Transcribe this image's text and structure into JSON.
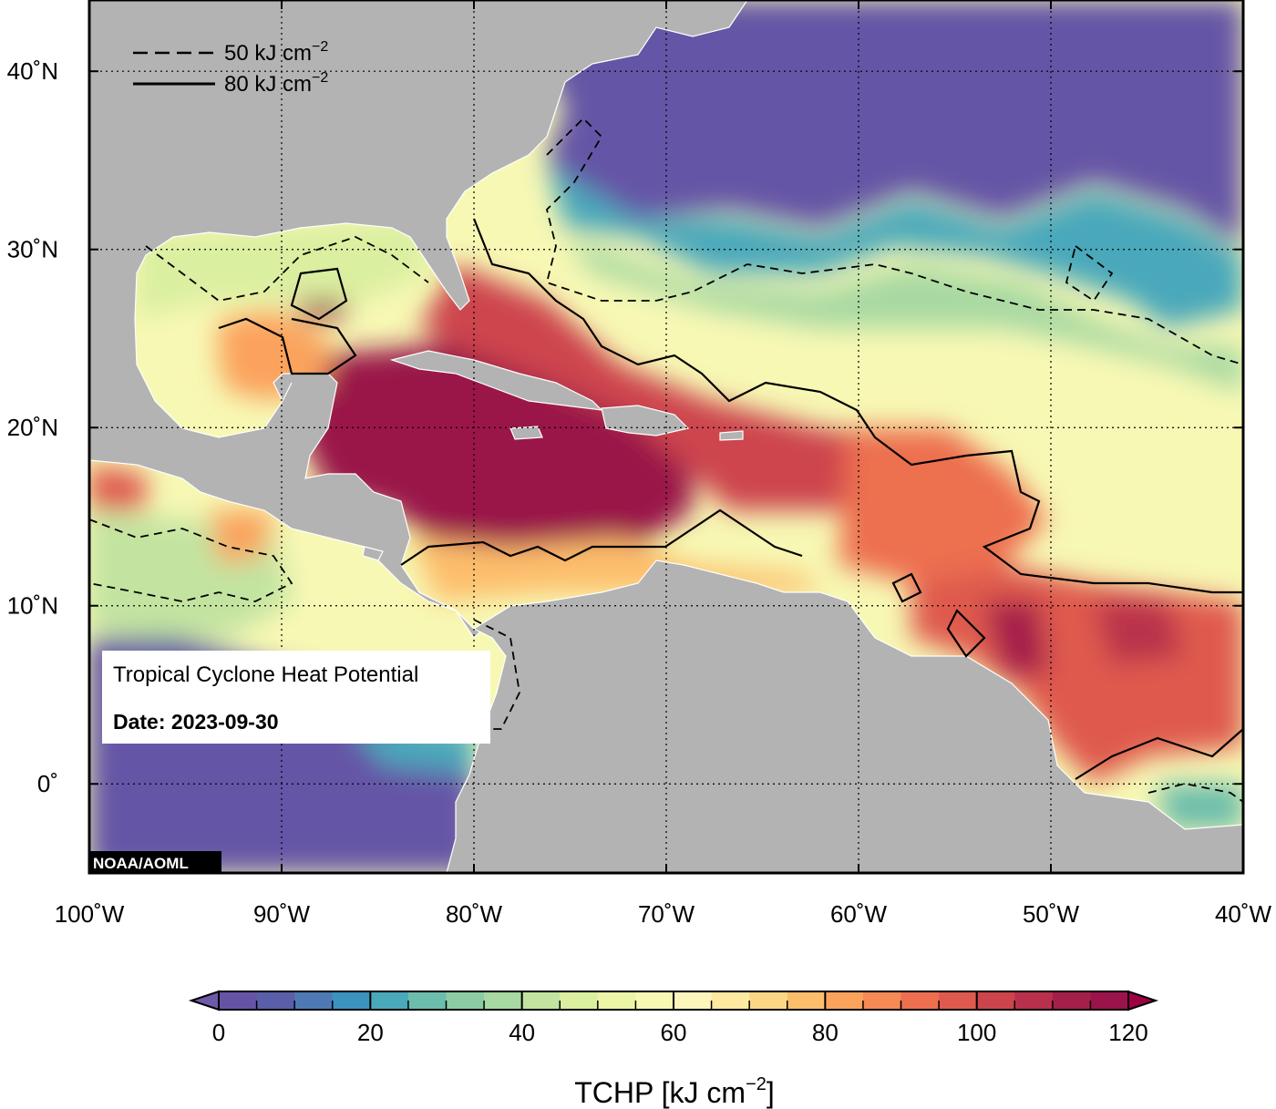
{
  "map": {
    "lon_range": [
      -100,
      -40
    ],
    "lat_range": [
      -5,
      44
    ],
    "lon_ticks": [
      {
        "value": -100,
        "label": "100˚W"
      },
      {
        "value": -90,
        "label": "90˚W"
      },
      {
        "value": -80,
        "label": "80˚W"
      },
      {
        "value": -70,
        "label": "70˚W"
      },
      {
        "value": -60,
        "label": "60˚W"
      },
      {
        "value": -50,
        "label": "50˚W"
      },
      {
        "value": -40,
        "label": "40˚W"
      }
    ],
    "lat_ticks": [
      {
        "value": 40,
        "label": "40˚N"
      },
      {
        "value": 30,
        "label": "30˚N"
      },
      {
        "value": 20,
        "label": "20˚N"
      },
      {
        "value": 10,
        "label": "10˚N"
      },
      {
        "value": 0,
        "label": "0˚"
      }
    ],
    "grid": "dotted",
    "land_color": "#b3b3b3"
  },
  "legend": {
    "dashed_label": "50 kJ cm",
    "solid_label": "80 kJ cm",
    "superscript": "−2"
  },
  "info_box": {
    "title": "Tropical Cyclone Heat Potential",
    "date": "Date: 2023-09-30"
  },
  "credit": "NOAA/AOML",
  "colorbar": {
    "title": "TCHP [kJ cm",
    "title_sup": "−2",
    "title_end": "]",
    "min": 0,
    "max": 120,
    "step": 5,
    "extend": "both",
    "ticks": [
      {
        "value": 0,
        "label": "0"
      },
      {
        "value": 20,
        "label": "20"
      },
      {
        "value": 40,
        "label": "40"
      },
      {
        "value": 60,
        "label": "60"
      },
      {
        "value": 80,
        "label": "80"
      },
      {
        "value": 100,
        "label": "100"
      },
      {
        "value": 120,
        "label": "120"
      }
    ],
    "colors": [
      "#6554a6",
      "#5b5fa9",
      "#4e79b5",
      "#3d93c0",
      "#4aa8bb",
      "#6cbdac",
      "#8ccca4",
      "#a8d9a2",
      "#c2e4a0",
      "#daefa0",
      "#ecf5a5",
      "#f7f8b4",
      "#fcf6bc",
      "#fde9a0",
      "#fdd685",
      "#fdbe6c",
      "#fba35d",
      "#f68954",
      "#ed6f50",
      "#df5a4e",
      "#cd444d",
      "#b9304c",
      "#a51f4b",
      "#9a1349"
    ],
    "under_color": "#6e5aa8",
    "over_color": "#9e0142"
  }
}
